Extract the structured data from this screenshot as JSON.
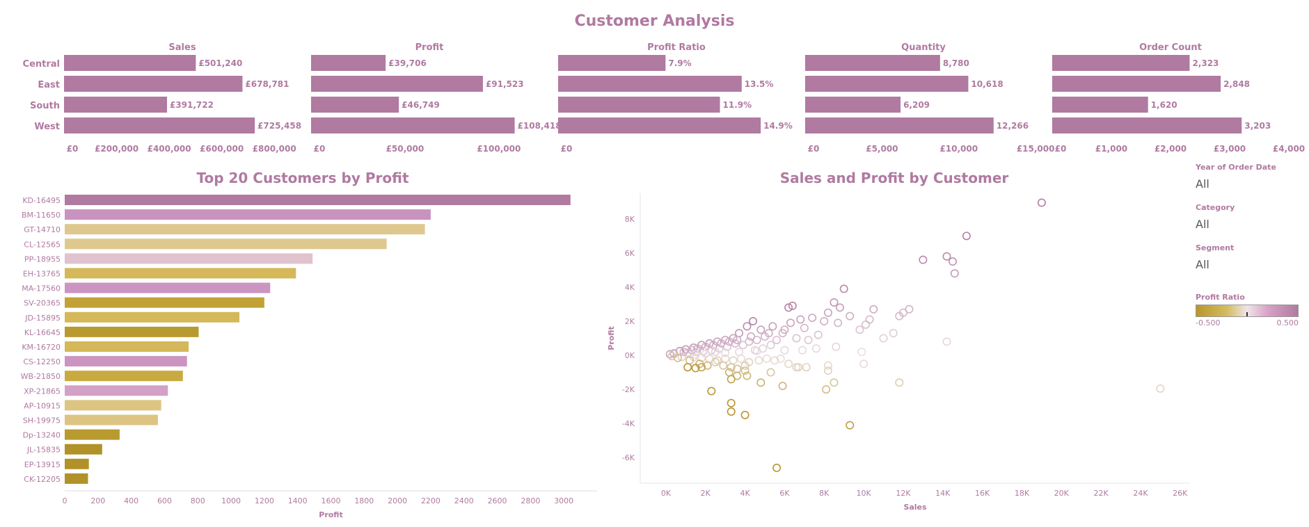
{
  "title": "Customer Analysis",
  "kpi_chart": {
    "regions": [
      "Central",
      "East",
      "South",
      "West"
    ],
    "bar_color": "#b07aa1",
    "panels": [
      {
        "name": "Sales",
        "values": [
          501240,
          678781,
          391722,
          725458
        ],
        "labels": [
          "£501,240",
          "£678,781",
          "£391,722",
          "£725,458"
        ],
        "max": 900000,
        "ticks": [
          0,
          200000,
          400000,
          600000,
          800000
        ],
        "tick_labels": [
          "£0",
          "£200,000",
          "£400,000",
          "£600,000",
          "£800,000"
        ]
      },
      {
        "name": "Profit",
        "values": [
          39706,
          91523,
          46749,
          108418
        ],
        "labels": [
          "£39,706",
          "£91,523",
          "£46,749",
          "£108,418"
        ],
        "max": 126000,
        "ticks": [
          0,
          50000,
          100000
        ],
        "tick_labels": [
          "£0",
          "£50,000",
          "£100,000"
        ]
      },
      {
        "name": "Profit Ratio",
        "values": [
          7.9,
          13.5,
          11.9,
          14.9
        ],
        "labels": [
          "7.9%",
          "13.5%",
          "11.9%",
          "14.9%"
        ],
        "max": 17.4,
        "ticks": [
          0
        ],
        "tick_labels": [
          "£0"
        ]
      },
      {
        "name": "Quantity",
        "values": [
          8780,
          10618,
          6209,
          12266
        ],
        "labels": [
          "8,780",
          "10,618",
          "6,209",
          "12,266"
        ],
        "max": 15400,
        "ticks": [
          0,
          5000,
          10000,
          15000
        ],
        "tick_labels": [
          "£0",
          "£5,000",
          "£10,000",
          "£15,000"
        ]
      },
      {
        "name": "Order Count",
        "values": [
          2323,
          2848,
          1620,
          3203
        ],
        "labels": [
          "2,323",
          "2,848",
          "1,620",
          "3,203"
        ],
        "max": 4000,
        "ticks": [
          0,
          1000,
          2000,
          3000,
          4000
        ],
        "tick_labels": [
          "£0",
          "£1,000",
          "£2,000",
          "£3,000",
          "£4,000"
        ]
      }
    ]
  },
  "top20": {
    "title": "Top 20 Customers by Profit",
    "xlabel": "Profit",
    "customers": [
      "KD-16495",
      "BM-11650",
      "GT-14710",
      "CL-12565",
      "PP-18955",
      "EH-13765",
      "MA-17560",
      "SV-20365",
      "JD-15895",
      "KL-16645",
      "KM-16720",
      "CS-12250",
      "WB-21850",
      "XP-21865",
      "AP-10915",
      "SH-19975",
      "Dp-13240",
      "JL-15835",
      "EP-13915",
      "CK-12205"
    ],
    "values": [
      3040,
      2200,
      2165,
      1935,
      1490,
      1390,
      1235,
      1200,
      1050,
      805,
      745,
      735,
      710,
      620,
      580,
      560,
      330,
      225,
      145,
      140
    ],
    "colors": [
      "#b07aa1",
      "#c993bf",
      "#dfc88f",
      "#dfc88f",
      "#e0c3cf",
      "#d4b85a",
      "#cc94c0",
      "#c2a236",
      "#d4b85a",
      "#b89a2f",
      "#d4b85a",
      "#cc94c0",
      "#c8aa40",
      "#d3a0c7",
      "#ddc483",
      "#ddc483",
      "#b89a2f",
      "#b09228",
      "#b09228",
      "#b09228"
    ],
    "ticks": [
      0,
      200,
      400,
      600,
      800,
      1000,
      1200,
      1400,
      1600,
      1800,
      2000,
      2200,
      2400,
      2600,
      2800,
      3000
    ],
    "xlim": [
      0,
      3200
    ]
  },
  "scatter": {
    "title": "Sales and Profit by Customer",
    "xlabel": "Sales",
    "ylabel": "Profit",
    "x_ticks": [
      0,
      2000,
      4000,
      6000,
      8000,
      10000,
      12000,
      14000,
      16000,
      18000,
      20000,
      22000,
      24000,
      26000
    ],
    "x_tick_labels": [
      "0K",
      "2K",
      "4K",
      "6K",
      "8K",
      "10K",
      "12K",
      "14K",
      "16K",
      "18K",
      "20K",
      "22K",
      "24K",
      "26K"
    ],
    "y_ticks": [
      -6000,
      -4000,
      -2000,
      0,
      2000,
      4000,
      6000,
      8000
    ],
    "y_tick_labels": [
      "-6K",
      "-4K",
      "-2K",
      "0K",
      "2K",
      "4K",
      "6K",
      "8K"
    ],
    "xlim": [
      -1300,
      26500
    ],
    "ylim": [
      -7500,
      9500
    ],
    "points": [
      [
        19000,
        8950,
        0.47
      ],
      [
        15200,
        7000,
        0.46
      ],
      [
        13000,
        5600,
        0.43
      ],
      [
        14200,
        5800,
        0.41
      ],
      [
        14500,
        5500,
        0.38
      ],
      [
        14600,
        4800,
        0.33
      ],
      [
        9000,
        3900,
        0.43
      ],
      [
        6400,
        2900,
        0.45
      ],
      [
        6200,
        2800,
        0.45
      ],
      [
        8500,
        3100,
        0.36
      ],
      [
        8200,
        2500,
        0.3
      ],
      [
        8800,
        2800,
        0.32
      ],
      [
        10500,
        2700,
        0.26
      ],
      [
        12000,
        2500,
        0.21
      ],
      [
        11800,
        2300,
        0.2
      ],
      [
        12300,
        2700,
        0.22
      ],
      [
        11500,
        1300,
        0.11
      ],
      [
        11000,
        1000,
        0.09
      ],
      [
        10300,
        2100,
        0.2
      ],
      [
        10100,
        1800,
        0.18
      ],
      [
        9800,
        1500,
        0.15
      ],
      [
        9300,
        2300,
        0.25
      ],
      [
        8700,
        1900,
        0.22
      ],
      [
        8000,
        2000,
        0.25
      ],
      [
        7400,
        2200,
        0.29
      ],
      [
        7000,
        1600,
        0.22
      ],
      [
        6800,
        2100,
        0.31
      ],
      [
        6300,
        1900,
        0.3
      ],
      [
        5400,
        1700,
        0.31
      ],
      [
        5900,
        1300,
        0.22
      ],
      [
        5200,
        1300,
        0.25
      ],
      [
        4800,
        1500,
        0.31
      ],
      [
        4400,
        2000,
        0.45
      ],
      [
        4100,
        1700,
        0.41
      ],
      [
        3700,
        1300,
        0.35
      ],
      [
        3400,
        1000,
        0.29
      ],
      [
        3000,
        900,
        0.3
      ],
      [
        2600,
        800,
        0.3
      ],
      [
        2200,
        700,
        0.32
      ],
      [
        1800,
        600,
        0.33
      ],
      [
        1400,
        450,
        0.32
      ],
      [
        1000,
        350,
        0.35
      ],
      [
        700,
        250,
        0.36
      ],
      [
        400,
        120,
        0.3
      ],
      [
        200,
        60,
        0.3
      ],
      [
        5000,
        1100,
        0.22
      ],
      [
        4600,
        900,
        0.2
      ],
      [
        4200,
        800,
        0.19
      ],
      [
        3900,
        600,
        0.15
      ],
      [
        3500,
        700,
        0.2
      ],
      [
        3100,
        500,
        0.16
      ],
      [
        2700,
        400,
        0.15
      ],
      [
        2300,
        300,
        0.13
      ],
      [
        1900,
        250,
        0.13
      ],
      [
        1500,
        200,
        0.13
      ],
      [
        1100,
        150,
        0.14
      ],
      [
        6000,
        1500,
        0.25
      ],
      [
        6600,
        1000,
        0.15
      ],
      [
        7200,
        900,
        0.13
      ],
      [
        7700,
        1200,
        0.16
      ],
      [
        5600,
        900,
        0.16
      ],
      [
        5300,
        600,
        0.11
      ],
      [
        4900,
        400,
        0.08
      ],
      [
        4500,
        300,
        0.07
      ],
      [
        6000,
        300,
        0.05
      ],
      [
        6900,
        300,
        0.04
      ],
      [
        7600,
        400,
        0.05
      ],
      [
        8600,
        500,
        0.06
      ],
      [
        9900,
        200,
        0.02
      ],
      [
        14200,
        800,
        0.06
      ],
      [
        5800,
        -200,
        -0.03
      ],
      [
        6200,
        -500,
        -0.08
      ],
      [
        6700,
        -700,
        -0.1
      ],
      [
        5500,
        -300,
        -0.05
      ],
      [
        5100,
        -200,
        -0.04
      ],
      [
        4700,
        -300,
        -0.06
      ],
      [
        4200,
        -400,
        -0.1
      ],
      [
        3800,
        -200,
        -0.05
      ],
      [
        3400,
        -300,
        -0.09
      ],
      [
        3000,
        -200,
        -0.07
      ],
      [
        2600,
        -300,
        -0.12
      ],
      [
        2200,
        -200,
        -0.09
      ],
      [
        1800,
        -150,
        -0.08
      ],
      [
        1400,
        -100,
        -0.07
      ],
      [
        1200,
        -300,
        -0.25
      ],
      [
        1700,
        -500,
        -0.3
      ],
      [
        2100,
        -600,
        -0.29
      ],
      [
        2500,
        -400,
        -0.16
      ],
      [
        2900,
        -600,
        -0.2
      ],
      [
        3300,
        -700,
        -0.21
      ],
      [
        3600,
        -800,
        -0.22
      ],
      [
        4000,
        -600,
        -0.15
      ],
      [
        1500,
        -750,
        -0.5
      ],
      [
        1100,
        -700,
        -0.6
      ],
      [
        1800,
        -700,
        -0.4
      ],
      [
        3200,
        -1000,
        -0.31
      ],
      [
        3600,
        -1200,
        -0.33
      ],
      [
        4000,
        -900,
        -0.22
      ],
      [
        4100,
        -1200,
        -0.29
      ],
      [
        3300,
        -1400,
        -0.42
      ],
      [
        2300,
        -2100,
        -0.9
      ],
      [
        3300,
        -2800,
        -0.85
      ],
      [
        3300,
        -3300,
        -1.0
      ],
      [
        4000,
        -3500,
        -0.87
      ],
      [
        4800,
        -1600,
        -0.33
      ],
      [
        5900,
        -1800,
        -0.3
      ],
      [
        5300,
        -1000,
        -0.19
      ],
      [
        6600,
        -700,
        -0.1
      ],
      [
        7100,
        -700,
        -0.1
      ],
      [
        8200,
        -600,
        -0.07
      ],
      [
        8200,
        -900,
        -0.11
      ],
      [
        8500,
        -1600,
        -0.19
      ],
      [
        8100,
        -2000,
        -0.25
      ],
      [
        9300,
        -4100,
        -0.44
      ],
      [
        10000,
        -500,
        -0.05
      ],
      [
        11800,
        -1600,
        -0.14
      ],
      [
        25000,
        -1950,
        -0.08
      ],
      [
        5600,
        -6600,
        -1.2
      ],
      [
        800,
        -100,
        -0.12
      ],
      [
        600,
        -150,
        -0.25
      ],
      [
        300,
        -50,
        -0.17
      ],
      [
        400,
        80,
        0.2
      ],
      [
        900,
        200,
        0.22
      ],
      [
        1300,
        300,
        0.23
      ],
      [
        1600,
        400,
        0.25
      ],
      [
        2000,
        500,
        0.25
      ],
      [
        2400,
        600,
        0.25
      ],
      [
        2800,
        700,
        0.25
      ],
      [
        3200,
        800,
        0.25
      ],
      [
        3600,
        900,
        0.25
      ],
      [
        4300,
        1100,
        0.26
      ],
      [
        2500,
        200,
        0.08
      ],
      [
        2000,
        100,
        0.05
      ],
      [
        1500,
        50,
        0.03
      ],
      [
        3000,
        150,
        0.05
      ],
      [
        3700,
        200,
        0.05
      ],
      [
        4600,
        250,
        0.05
      ]
    ]
  },
  "filters": [
    {
      "label": "Year of Order Date",
      "value": "All"
    },
    {
      "label": "Category",
      "value": "All"
    },
    {
      "label": "Segment",
      "value": "All"
    }
  ],
  "legend": {
    "label": "Profit Ratio",
    "min_label": "-0.500",
    "max_label": "0.500"
  }
}
